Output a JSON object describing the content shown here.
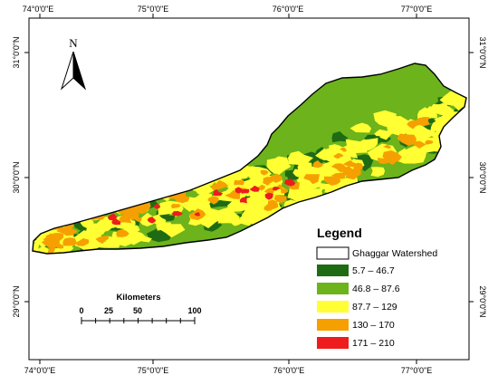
{
  "colors": {
    "class1": "#1e6b14",
    "class2": "#6cb31c",
    "class3": "#ffff33",
    "class4": "#f5a000",
    "class5": "#ee1c1c",
    "outline": "#000000",
    "frame": "#000000"
  },
  "axes": {
    "top_ticks": [
      "74°0'0\"E",
      "75°0'0\"E",
      "76°0'0\"E",
      "77°0'0\"E"
    ],
    "bottom_ticks": [
      "74°0'0\"E",
      "75°0'0\"E",
      "76°0'0\"E",
      "77°0'0\"E"
    ],
    "left_ticks": [
      "31°0'0\"N",
      "30°0'0\"N",
      "29°0'0\"N"
    ],
    "right_ticks": [
      "31°0'0\"N",
      "30°0'0\"N",
      "29°0'0\"N"
    ]
  },
  "north_arrow": {
    "label": "N",
    "icon": "north-arrow-icon"
  },
  "legend": {
    "title": "Legend",
    "items": [
      {
        "label": "Ghaggar Watershed",
        "swatch": "outline"
      },
      {
        "label": "5.7 – 46.7",
        "swatch": "class1"
      },
      {
        "label": "46.8 – 87.6",
        "swatch": "class2"
      },
      {
        "label": "87.7 – 129",
        "swatch": "class3"
      },
      {
        "label": "130 – 170",
        "swatch": "class4"
      },
      {
        "label": "171 – 210",
        "swatch": "class5"
      }
    ]
  },
  "scale_bar": {
    "title": "Kilometers",
    "labels": [
      "0",
      "25",
      "50",
      "100"
    ]
  }
}
